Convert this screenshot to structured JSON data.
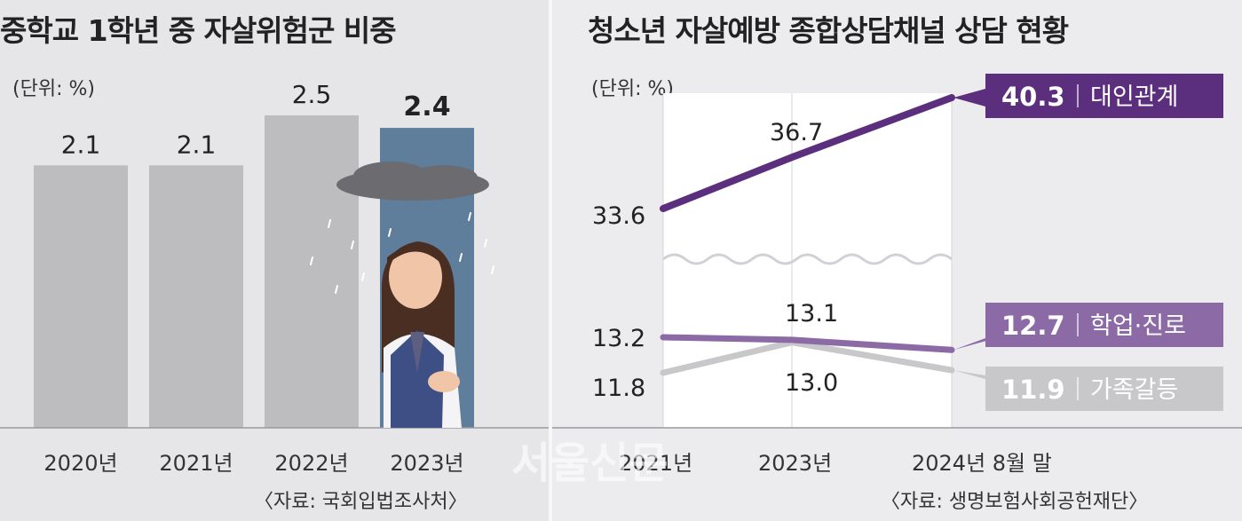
{
  "left": {
    "title": "중학교 1학년 중 자살위험군 비중",
    "unit": "(단위: %)",
    "source": "〈자료: 국회입법조사처〉",
    "chart_data": {
      "type": "bar",
      "title": "중학교 1학년 중 자살위험군 비중",
      "unit": "(단위: %)",
      "categories": [
        "2020년",
        "2021년",
        "2022년",
        "2023년"
      ],
      "values": [
        2.1,
        2.1,
        2.5,
        2.4
      ],
      "value_labels": [
        "2.1",
        "2.1",
        "2.5",
        "2.4"
      ],
      "highlight_index": 3,
      "colors": {
        "bar": "#bdbdc0",
        "highlight": "#5f7e9c"
      }
    }
  },
  "right": {
    "title": "청소년 자살예방 종합상담채널 상담 현황",
    "unit": "(단위: %)",
    "source": "〈자료: 생명보험사회공헌재단〉",
    "chart_data": {
      "type": "line",
      "title": "청소년 자살예방 종합상담채널 상담 현황",
      "unit": "(단위: %)",
      "x": [
        "2021년",
        "2023년",
        "2024년 8월 말"
      ],
      "series": [
        {
          "name": "대인관계",
          "values": [
            33.6,
            36.7,
            40.3
          ],
          "labels": [
            "33.6",
            "36.7",
            "40.3"
          ],
          "color": "#5b2f7e"
        },
        {
          "name": "학업·진로",
          "values": [
            13.2,
            13.1,
            12.7
          ],
          "labels": [
            "13.2",
            "13.1",
            "12.7"
          ],
          "color": "#8c6aa6"
        },
        {
          "name": "가족갈등",
          "values": [
            11.8,
            13.0,
            11.9
          ],
          "labels": [
            "11.8",
            "13.0",
            "11.9"
          ],
          "color": "#c8c8cb"
        }
      ],
      "axis_break": true
    }
  },
  "watermark": "서울신문"
}
